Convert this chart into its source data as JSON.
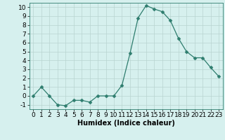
{
  "x": [
    0,
    1,
    2,
    3,
    4,
    5,
    6,
    7,
    8,
    9,
    10,
    11,
    12,
    13,
    14,
    15,
    16,
    17,
    18,
    19,
    20,
    21,
    22,
    23
  ],
  "y": [
    0.0,
    1.0,
    0.0,
    -1.0,
    -1.1,
    -0.5,
    -0.5,
    -0.7,
    0.0,
    0.0,
    0.0,
    1.2,
    4.8,
    8.8,
    10.2,
    9.8,
    9.5,
    8.5,
    6.5,
    5.0,
    4.3,
    4.3,
    3.2,
    2.2
  ],
  "line_color": "#2e7d6e",
  "marker": "D",
  "marker_size": 2.5,
  "bg_color": "#d6f0ee",
  "grid_color": "#b8d4d0",
  "xlabel": "Humidex (Indice chaleur)",
  "ylim": [
    -1.5,
    10.5
  ],
  "xlim": [
    -0.5,
    23.5
  ],
  "yticks": [
    -1,
    0,
    1,
    2,
    3,
    4,
    5,
    6,
    7,
    8,
    9,
    10
  ],
  "xticks": [
    0,
    1,
    2,
    3,
    4,
    5,
    6,
    7,
    8,
    9,
    10,
    11,
    12,
    13,
    14,
    15,
    16,
    17,
    18,
    19,
    20,
    21,
    22,
    23
  ],
  "axis_label_fontsize": 7,
  "tick_fontsize": 6.5
}
